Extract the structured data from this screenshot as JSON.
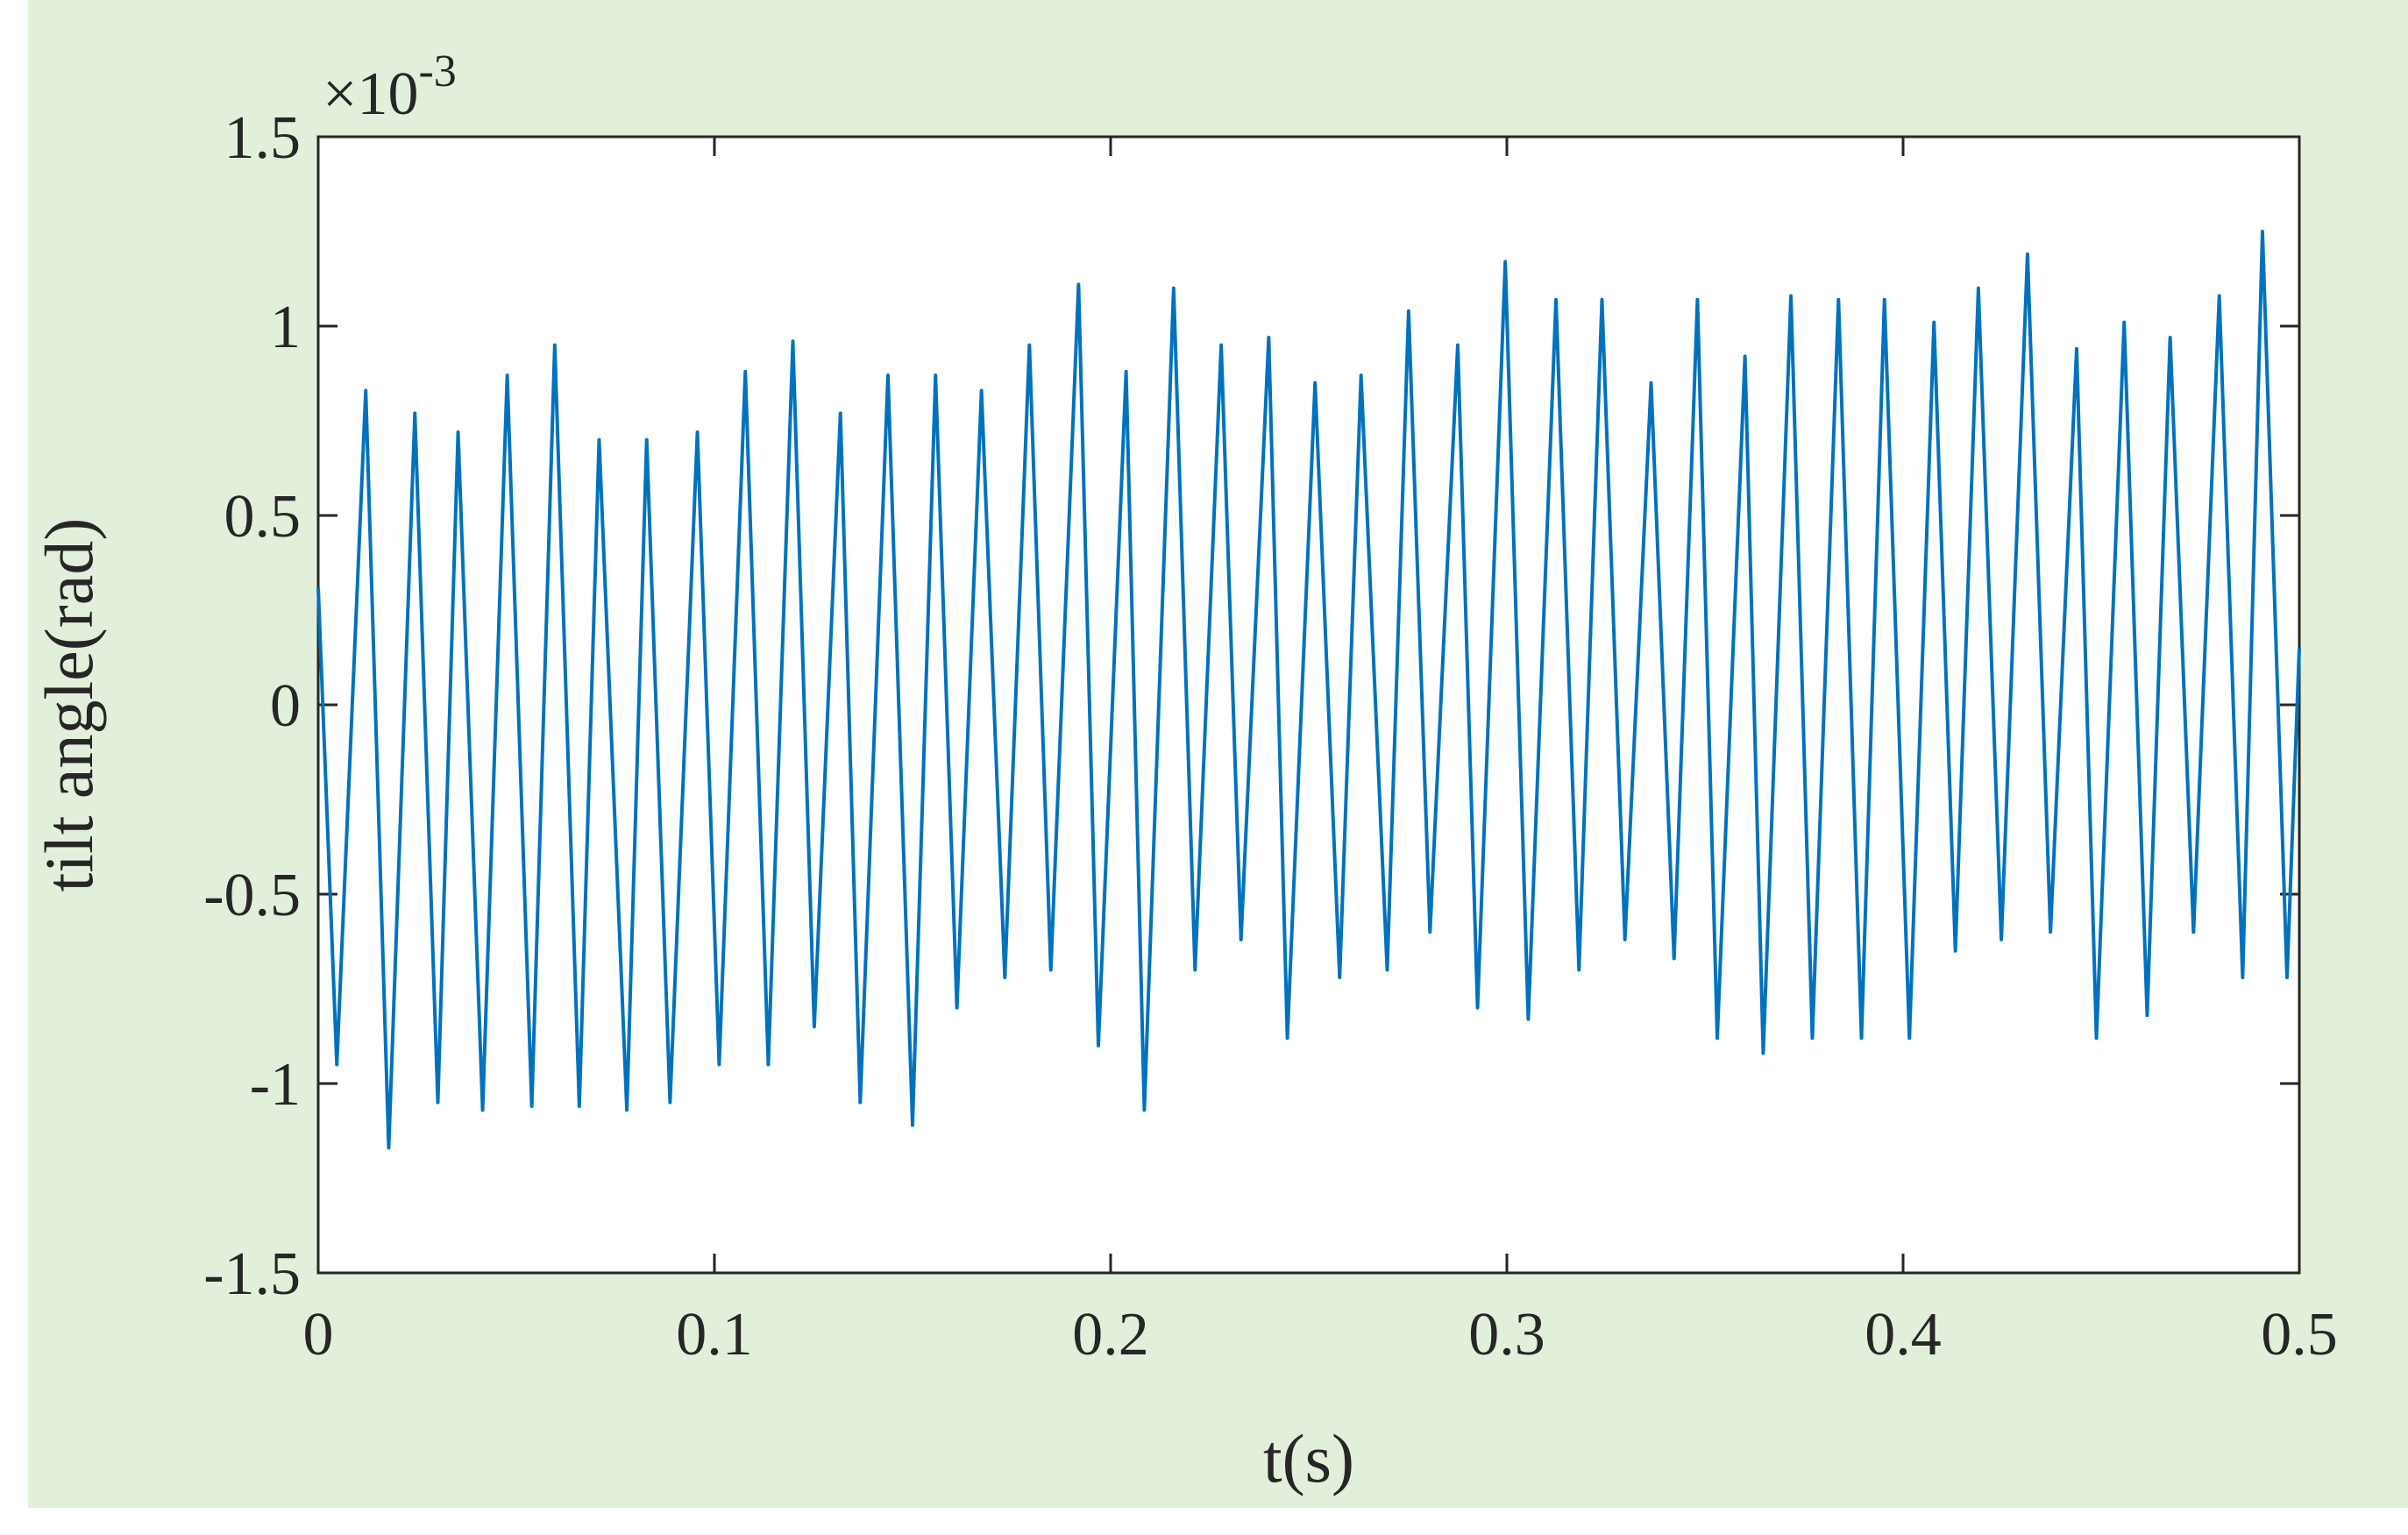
{
  "chart_data": {
    "type": "line",
    "xlabel": "t(s)",
    "ylabel": "tilt angle(rad)",
    "y_multiplier": {
      "base": "×10",
      "exponent": "-3"
    },
    "x": [
      0,
      0.0047,
      0.012,
      0.0178,
      0.0244,
      0.0302,
      0.0353,
      0.0415,
      0.0477,
      0.0539,
      0.0597,
      0.0659,
      0.0709,
      0.0779,
      0.0829,
      0.0888,
      0.0957,
      0.1012,
      0.1078,
      0.1136,
      0.1198,
      0.1252,
      0.1318,
      0.1368,
      0.1438,
      0.15,
      0.1558,
      0.1612,
      0.1674,
      0.1733,
      0.1795,
      0.1849,
      0.1919,
      0.1969,
      0.2039,
      0.2085,
      0.2159,
      0.2213,
      0.2279,
      0.2329,
      0.2399,
      0.2446,
      0.2516,
      0.2578,
      0.2632,
      0.2698,
      0.2752,
      0.2806,
      0.2876,
      0.2926,
      0.2996,
      0.3054,
      0.3124,
      0.3182,
      0.324,
      0.3298,
      0.3364,
      0.3422,
      0.3481,
      0.3531,
      0.3601,
      0.3647,
      0.3717,
      0.3771,
      0.3837,
      0.3895,
      0.3953,
      0.4016,
      0.4078,
      0.4132,
      0.419,
      0.4248,
      0.4314,
      0.4372,
      0.4438,
      0.4488,
      0.4558,
      0.4616,
      0.4674,
      0.4733,
      0.4798,
      0.4857,
      0.4907,
      0.4969,
      0.5
    ],
    "series": [
      {
        "name": "tilt angle",
        "color": "#0072bd",
        "values": [
          0.31,
          -0.95,
          0.83,
          -1.17,
          0.77,
          -1.05,
          0.72,
          -1.07,
          0.87,
          -1.06,
          0.95,
          -1.06,
          0.7,
          -1.07,
          0.7,
          -1.05,
          0.72,
          -0.95,
          0.88,
          -0.95,
          0.96,
          -0.85,
          0.77,
          -1.05,
          0.87,
          -1.11,
          0.87,
          -0.8,
          0.83,
          -0.72,
          0.95,
          -0.7,
          1.11,
          -0.9,
          0.88,
          -1.07,
          1.1,
          -0.7,
          0.95,
          -0.62,
          0.97,
          -0.88,
          0.85,
          -0.72,
          0.87,
          -0.7,
          1.04,
          -0.6,
          0.95,
          -0.8,
          1.17,
          -0.83,
          1.07,
          -0.7,
          1.07,
          -0.62,
          0.85,
          -0.67,
          1.07,
          -0.88,
          0.92,
          -0.92,
          1.08,
          -0.88,
          1.07,
          -0.88,
          1.07,
          -0.88,
          1.01,
          -0.65,
          1.1,
          -0.62,
          1.19,
          -0.6,
          0.94,
          -0.88,
          1.01,
          -0.82,
          0.97,
          -0.6,
          1.08,
          -0.72,
          1.25,
          -0.72,
          0.15
        ]
      }
    ],
    "xlim": [
      0,
      0.5
    ],
    "xticks": [
      0,
      0.1,
      0.2,
      0.3,
      0.4,
      0.5
    ],
    "ylim": [
      -1.5,
      1.5
    ],
    "yticks": [
      -1.5,
      -1,
      -0.5,
      0,
      0.5,
      1,
      1.5
    ]
  }
}
